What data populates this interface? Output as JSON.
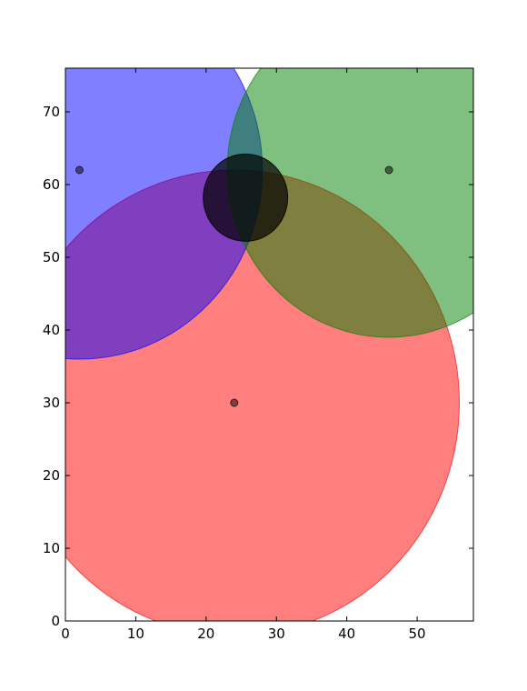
{
  "chart_data": {
    "type": "scatter",
    "title": "",
    "xlabel": "",
    "ylabel": "",
    "xlim": [
      0,
      58
    ],
    "ylim": [
      0,
      76
    ],
    "x_ticks": [
      0,
      10,
      20,
      30,
      40,
      50
    ],
    "y_ticks": [
      0,
      10,
      20,
      30,
      40,
      50,
      60,
      70
    ],
    "grid": false,
    "legend": "none",
    "circles": [
      {
        "cx": 24,
        "cy": 30,
        "r": 32,
        "color": "#ff0000",
        "opacity": 0.5,
        "center_marker": true
      },
      {
        "cx": 2,
        "cy": 62,
        "r": 26,
        "color": "#0000ff",
        "opacity": 0.5,
        "center_marker": true
      },
      {
        "cx": 46,
        "cy": 62,
        "r": 23,
        "color": "#008000",
        "opacity": 0.5,
        "center_marker": true
      },
      {
        "cx": 25.6,
        "cy": 58.2,
        "r": 6,
        "color": "#000000",
        "opacity": 0.7,
        "center_marker": false
      }
    ]
  }
}
